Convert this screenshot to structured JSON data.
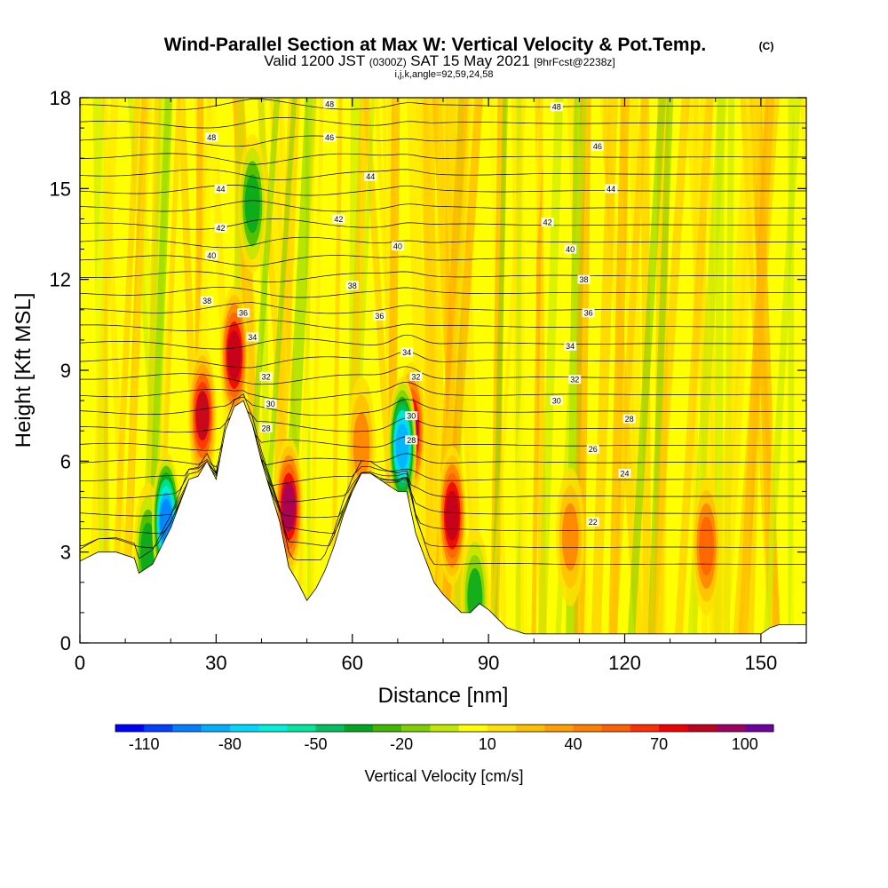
{
  "chart_data": {
    "type": "heatmap",
    "title": "Wind-Parallel Section at Max W: Vertical Velocity & Pot.Temp.",
    "title_mark": "(C)",
    "subtitle_main": "Valid 1200 JST",
    "subtitle_utc": "(0300Z)",
    "subtitle_date": "SAT 15 May 2021",
    "subtitle_fcst": "[9hrFcst@2238z]",
    "subtitle_index": "i,j,k,angle=92,59,24,58",
    "xlabel": "Distance [nm]",
    "ylabel": "Height [Kft MSL]",
    "xlim": [
      0,
      160
    ],
    "ylim": [
      0,
      18
    ],
    "xticks": [
      "0",
      "30",
      "60",
      "90",
      "120",
      "150"
    ],
    "yticks": [
      "0",
      "3",
      "6",
      "9",
      "12",
      "15",
      "18"
    ],
    "colorbar": {
      "label": "Vertical Velocity [cm/s]",
      "range": [
        -120,
        110
      ],
      "step": 10,
      "tick_labels": [
        "-110",
        "-80",
        "-50",
        "-20",
        "10",
        "40",
        "70",
        "100"
      ],
      "colors": [
        "#0000ff",
        "#0040ff",
        "#0080ff",
        "#00b0ff",
        "#00d8ff",
        "#00f0e0",
        "#00e8a0",
        "#00c060",
        "#00a820",
        "#40b800",
        "#80d000",
        "#c0e800",
        "#ffff00",
        "#ffe000",
        "#ffc000",
        "#ffa000",
        "#ff8000",
        "#ff6000",
        "#ff3000",
        "#f00000",
        "#c00020",
        "#a00060",
        "#7000a0"
      ]
    },
    "series": [
      {
        "name": "terrain",
        "x": [
          0,
          4,
          8,
          12,
          13,
          16,
          18,
          20,
          22,
          24,
          26,
          28,
          30,
          32,
          34,
          36,
          38,
          40,
          42,
          44,
          46,
          48,
          50,
          52,
          54,
          56,
          58,
          60,
          62,
          64,
          66,
          68,
          70,
          72,
          74,
          76,
          78,
          80,
          82,
          84,
          86,
          88,
          90,
          92,
          94,
          96,
          98,
          100,
          110,
          120,
          130,
          140,
          150,
          152,
          154,
          160
        ],
        "y": [
          2.7,
          3.0,
          3.0,
          2.8,
          2.3,
          2.6,
          3.2,
          3.8,
          4.6,
          5.4,
          5.5,
          6.0,
          5.4,
          7.0,
          7.8,
          8.0,
          7.2,
          6.0,
          5.0,
          4.0,
          2.5,
          2.0,
          1.4,
          1.8,
          2.4,
          3.2,
          4.2,
          5.0,
          5.6,
          5.6,
          5.4,
          5.2,
          5.0,
          5.0,
          3.6,
          2.8,
          2.0,
          1.6,
          1.3,
          1.0,
          1.0,
          1.3,
          1.1,
          0.8,
          0.5,
          0.4,
          0.3,
          0.3,
          0.3,
          0.3,
          0.3,
          0.3,
          0.3,
          0.5,
          0.6,
          0.6
        ]
      },
      {
        "name": "updraft_cores",
        "x": [
          15,
          27,
          34,
          46,
          62,
          73,
          82,
          108,
          138
        ],
        "y": [
          3.0,
          7.5,
          9.5,
          4.5,
          6.5,
          7.0,
          4.2,
          3.5,
          3.2
        ],
        "w": [
          -40,
          80,
          85,
          90,
          45,
          90,
          85,
          40,
          55
        ]
      },
      {
        "name": "downdraft_cores",
        "x": [
          19,
          38,
          71,
          87
        ],
        "y": [
          4.0,
          14.5,
          6.5,
          1.5
        ],
        "w": [
          -100,
          -40,
          -90,
          -35
        ]
      }
    ],
    "contour_labels": [
      {
        "x": 55,
        "y": 17.8,
        "text": "48"
      },
      {
        "x": 105,
        "y": 17.7,
        "text": "48"
      },
      {
        "x": 29,
        "y": 16.7,
        "text": "48"
      },
      {
        "x": 55,
        "y": 16.7,
        "text": "46"
      },
      {
        "x": 114,
        "y": 16.4,
        "text": "46"
      },
      {
        "x": 31,
        "y": 15.0,
        "text": "44"
      },
      {
        "x": 64,
        "y": 15.4,
        "text": "44"
      },
      {
        "x": 117,
        "y": 15.0,
        "text": "44"
      },
      {
        "x": 31,
        "y": 13.7,
        "text": "42"
      },
      {
        "x": 57,
        "y": 14.0,
        "text": "42"
      },
      {
        "x": 103,
        "y": 13.9,
        "text": "42"
      },
      {
        "x": 29,
        "y": 12.8,
        "text": "40"
      },
      {
        "x": 70,
        "y": 13.1,
        "text": "40"
      },
      {
        "x": 108,
        "y": 13.0,
        "text": "40"
      },
      {
        "x": 28,
        "y": 11.3,
        "text": "38"
      },
      {
        "x": 60,
        "y": 11.8,
        "text": "38"
      },
      {
        "x": 111,
        "y": 12.0,
        "text": "38"
      },
      {
        "x": 36,
        "y": 10.9,
        "text": "36"
      },
      {
        "x": 66,
        "y": 10.8,
        "text": "36"
      },
      {
        "x": 112,
        "y": 10.9,
        "text": "36"
      },
      {
        "x": 38,
        "y": 10.1,
        "text": "34"
      },
      {
        "x": 72,
        "y": 9.6,
        "text": "34"
      },
      {
        "x": 108,
        "y": 9.8,
        "text": "34"
      },
      {
        "x": 41,
        "y": 8.8,
        "text": "32"
      },
      {
        "x": 74,
        "y": 8.8,
        "text": "32"
      },
      {
        "x": 109,
        "y": 8.7,
        "text": "32"
      },
      {
        "x": 42,
        "y": 7.9,
        "text": "30"
      },
      {
        "x": 73,
        "y": 7.5,
        "text": "30"
      },
      {
        "x": 105,
        "y": 8.0,
        "text": "30"
      },
      {
        "x": 41,
        "y": 7.1,
        "text": "28"
      },
      {
        "x": 73,
        "y": 6.7,
        "text": "28"
      },
      {
        "x": 121,
        "y": 7.4,
        "text": "28"
      },
      {
        "x": 113,
        "y": 6.4,
        "text": "26"
      },
      {
        "x": 120,
        "y": 5.6,
        "text": "24"
      },
      {
        "x": 113,
        "y": 4.0,
        "text": "22"
      }
    ]
  }
}
